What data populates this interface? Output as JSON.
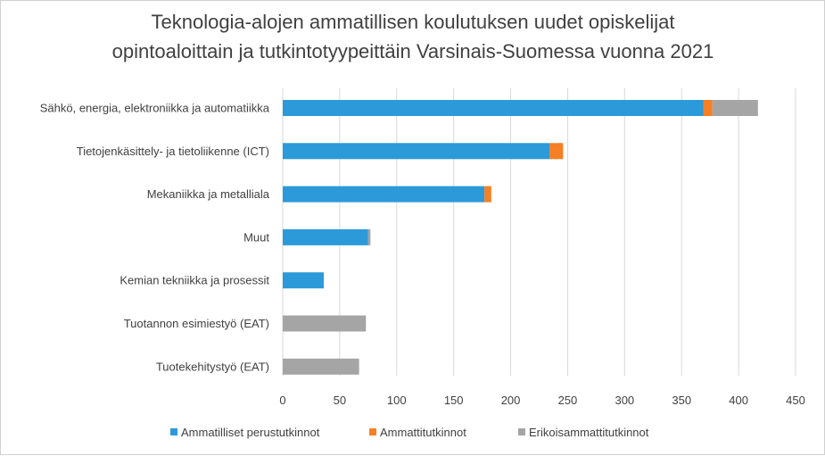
{
  "chart_data": {
    "type": "bar",
    "orientation": "horizontal",
    "stacked": true,
    "title": [
      "Teknologia-alojen ammatillisen koulutuksen uudet opiskelijat",
      "opintoaloittain ja tutkintotyypeittäin Varsinais-Suomessa vuonna 2021"
    ],
    "categories": [
      "Sähkö, energia, elektroniikka ja automatiikka",
      "Tietojenkäsittely- ja tietoliikenne (ICT)",
      "Mekaniikka ja metalliala",
      "Muut",
      "Kemian tekniikka ja prosessit",
      "Tuotannon esimiestyö (EAT)",
      "Tuotekehitystyö (EAT)"
    ],
    "series": [
      {
        "name": "Ammatilliset perustutkinnot",
        "color": "#2c9ad8",
        "values": [
          369,
          234,
          177,
          75,
          36,
          0,
          0
        ]
      },
      {
        "name": "Ammattitutkinnot",
        "color": "#f58025",
        "values": [
          8,
          12,
          6,
          0,
          0,
          0,
          0
        ]
      },
      {
        "name": "Erikoisammattitutkinnot",
        "color": "#a5a5a5",
        "values": [
          40,
          0,
          0,
          2,
          0,
          73,
          67
        ]
      }
    ],
    "xlim": [
      0,
      450
    ],
    "xticks": [
      "0",
      "50",
      "100",
      "150",
      "200",
      "250",
      "300",
      "350",
      "400",
      "450"
    ],
    "xlabel": "",
    "ylabel": "",
    "grid": "vertical",
    "legend_position": "bottom"
  }
}
